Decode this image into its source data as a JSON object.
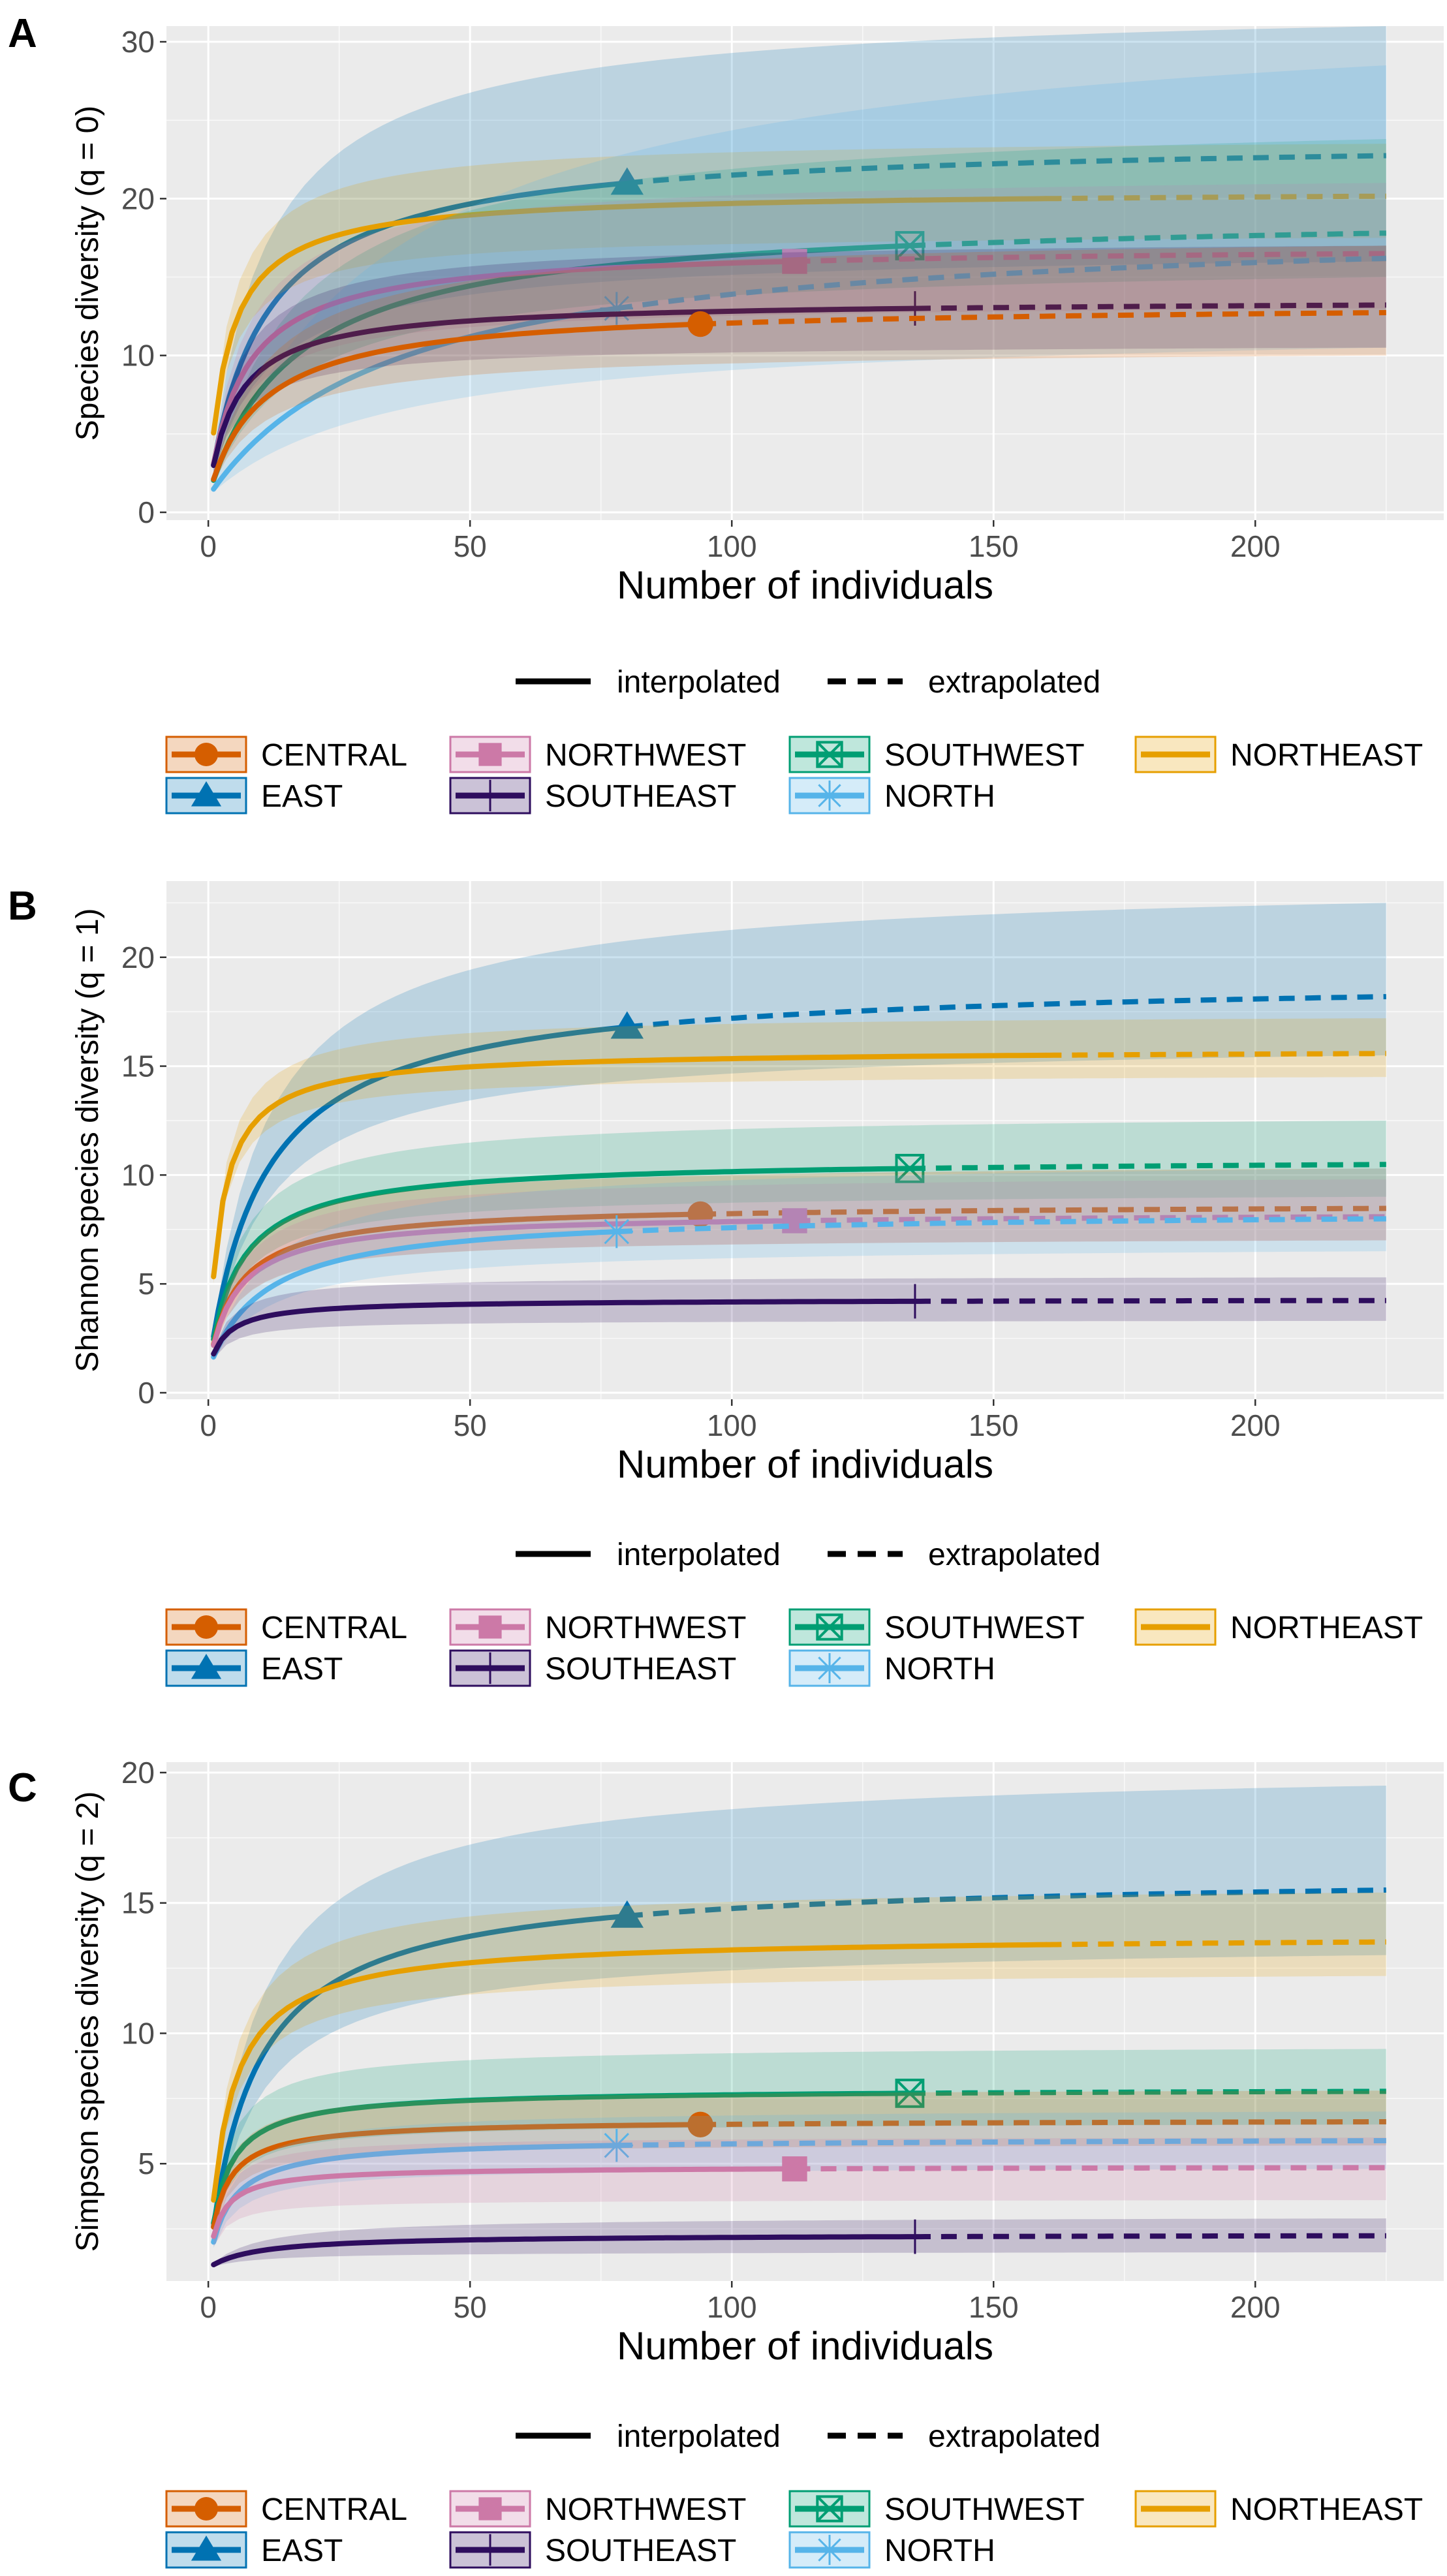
{
  "colors": {
    "CENTRAL": "#D55E00",
    "EAST": "#0072B2",
    "NORTHWEST": "#CC79A7",
    "SOUTHEAST": "#2E0D5E",
    "SOUTHWEST": "#009E73",
    "NORTH": "#56B4E9",
    "NORTHEAST": "#E69F00",
    "panel_bg": "#EBEBEB",
    "grid": "#FFFFFF"
  },
  "legend": {
    "line_types": [
      "interpolated",
      "extrapolated"
    ],
    "groups": [
      {
        "name": "CENTRAL",
        "marker": "circle"
      },
      {
        "name": "NORTHWEST",
        "marker": "square"
      },
      {
        "name": "SOUTHWEST",
        "marker": "boxed-x"
      },
      {
        "name": "NORTHEAST",
        "marker": "none"
      },
      {
        "name": "EAST",
        "marker": "triangle"
      },
      {
        "name": "SOUTHEAST",
        "marker": "vline"
      },
      {
        "name": "NORTH",
        "marker": "asterisk"
      }
    ]
  },
  "chart_data": [
    {
      "panel_label": "A",
      "type": "line",
      "xlabel": "Number of individuals",
      "ylabel": "Species diversity (q = 0)",
      "xlim": [
        -8,
        236
      ],
      "ylim": [
        -0.5,
        31
      ],
      "xticks": [
        0,
        50,
        100,
        150,
        200
      ],
      "yticks": [
        0,
        10,
        20,
        30
      ],
      "x_end": 225,
      "series": [
        {
          "name": "EAST",
          "observed_n": 80,
          "observed_value": 21,
          "asymptote": 24.0,
          "lower_end": 16.0,
          "upper_end": 31.0
        },
        {
          "name": "NORTHEAST",
          "observed_n": 160,
          "observed_value": 20,
          "asymptote": 20.6,
          "lower_end": 17.5,
          "upper_end": 23.5
        },
        {
          "name": "SOUTHWEST",
          "observed_n": 134,
          "observed_value": 17,
          "asymptote": 19.3,
          "lower_end": 15.0,
          "upper_end": 23.8
        },
        {
          "name": "NORTHWEST",
          "observed_n": 112,
          "observed_value": 16,
          "asymptote": 17.1,
          "lower_end": 13.0,
          "upper_end": 21.0
        },
        {
          "name": "NORTH",
          "observed_n": 78,
          "observed_value": 13,
          "asymptote": 19.0,
          "lower_end": 10.5,
          "upper_end": 28.5
        },
        {
          "name": "SOUTHEAST",
          "observed_n": 135,
          "observed_value": 13,
          "asymptote": 13.6,
          "lower_end": 10.5,
          "upper_end": 17.0
        },
        {
          "name": "CENTRAL",
          "observed_n": 94,
          "observed_value": 12,
          "asymptote": 13.4,
          "lower_end": 10.0,
          "upper_end": 17.0
        }
      ]
    },
    {
      "panel_label": "B",
      "type": "line",
      "xlabel": "Number of individuals",
      "ylabel": "Shannon species diversity (q = 1)",
      "xlim": [
        -8,
        236
      ],
      "ylim": [
        -0.3,
        23.5
      ],
      "xticks": [
        0,
        50,
        100,
        150,
        200
      ],
      "yticks": [
        0,
        5,
        10,
        15,
        20
      ],
      "x_end": 225,
      "series": [
        {
          "name": "EAST",
          "observed_n": 80,
          "observed_value": 16.8,
          "asymptote": 19.2,
          "lower_end": 15.5,
          "upper_end": 22.5
        },
        {
          "name": "NORTHEAST",
          "observed_n": 160,
          "observed_value": 15.5,
          "asymptote": 15.8,
          "lower_end": 14.5,
          "upper_end": 17.2
        },
        {
          "name": "SOUTHWEST",
          "observed_n": 134,
          "observed_value": 10.3,
          "asymptote": 10.8,
          "lower_end": 9.0,
          "upper_end": 12.5
        },
        {
          "name": "CENTRAL",
          "observed_n": 94,
          "observed_value": 8.2,
          "asymptote": 8.7,
          "lower_end": 7.0,
          "upper_end": 10.3
        },
        {
          "name": "NORTHWEST",
          "observed_n": 112,
          "observed_value": 7.9,
          "asymptote": 8.3,
          "lower_end": 7.0,
          "upper_end": 9.8
        },
        {
          "name": "NORTH",
          "observed_n": 78,
          "observed_value": 7.4,
          "asymptote": 8.4,
          "lower_end": 6.5,
          "upper_end": 10.3
        },
        {
          "name": "SOUTHEAST",
          "observed_n": 135,
          "observed_value": 4.2,
          "asymptote": 4.3,
          "lower_end": 3.3,
          "upper_end": 5.3
        }
      ]
    },
    {
      "panel_label": "C",
      "type": "line",
      "xlabel": "Number of individuals",
      "ylabel": "Simpson species diversity (q = 2)",
      "xlim": [
        -8,
        236
      ],
      "ylim": [
        0.5,
        20.4
      ],
      "xticks": [
        0,
        50,
        100,
        150,
        200
      ],
      "yticks": [
        5,
        10,
        15,
        20
      ],
      "x_end": 225,
      "series": [
        {
          "name": "EAST",
          "observed_n": 80,
          "observed_value": 14.5,
          "asymptote": 16.2,
          "lower_end": 13.0,
          "upper_end": 19.5
        },
        {
          "name": "NORTHEAST",
          "observed_n": 160,
          "observed_value": 13.4,
          "asymptote": 13.8,
          "lower_end": 12.2,
          "upper_end": 15.4
        },
        {
          "name": "SOUTHWEST",
          "observed_n": 134,
          "observed_value": 7.7,
          "asymptote": 7.9,
          "lower_end": 6.5,
          "upper_end": 9.4
        },
        {
          "name": "CENTRAL",
          "observed_n": 94,
          "observed_value": 6.5,
          "asymptote": 6.7,
          "lower_end": 5.7,
          "upper_end": 7.8
        },
        {
          "name": "NORTH",
          "observed_n": 78,
          "observed_value": 5.7,
          "asymptote": 6.0,
          "lower_end": 4.8,
          "upper_end": 7.0
        },
        {
          "name": "NORTHWEST",
          "observed_n": 112,
          "observed_value": 4.8,
          "asymptote": 4.9,
          "lower_end": 3.6,
          "upper_end": 6.0
        },
        {
          "name": "SOUTHEAST",
          "observed_n": 135,
          "observed_value": 2.2,
          "asymptote": 2.3,
          "lower_end": 1.6,
          "upper_end": 2.9
        }
      ]
    }
  ]
}
